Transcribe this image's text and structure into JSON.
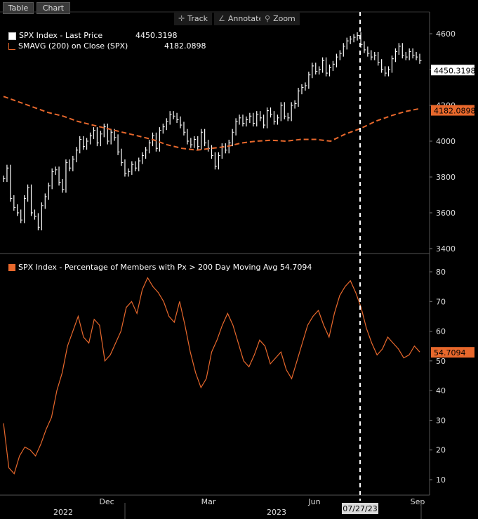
{
  "tabs": [
    {
      "label": "Table"
    },
    {
      "label": "Chart"
    }
  ],
  "toolbar": {
    "track": "Track",
    "annotate": "Annotate",
    "zoom": "Zoom"
  },
  "colors": {
    "price": "#ffffff",
    "sma": "#e8682c",
    "breadth": "#e8682c",
    "cursor": "#ffffff"
  },
  "legend": {
    "price_name": "SPX Index - Last Price",
    "price_value": "4450.3198",
    "sma_name": "SMAVG (200)  on Close (SPX)",
    "sma_value": "4182.0898",
    "breadth_name": "SPX Index - Percentage of Members with Px > 200 Day Moving Avg",
    "breadth_value": "54.7094"
  },
  "cursor_label": "07/27/23",
  "chart_data": [
    {
      "type": "line",
      "series": [
        {
          "name": "SPX Index - Last Price",
          "kind": "ohlc-bar",
          "values": [
            3790,
            3850,
            3680,
            3630,
            3600,
            3560,
            3680,
            3740,
            3600,
            3580,
            3520,
            3640,
            3690,
            3750,
            3830,
            3840,
            3770,
            3730,
            3880,
            3850,
            3900,
            3950,
            4010,
            3970,
            4000,
            4030,
            4060,
            3990,
            4040,
            4080,
            4000,
            4050,
            4020,
            3940,
            3880,
            3820,
            3830,
            3870,
            3850,
            3890,
            3920,
            3950,
            3990,
            4030,
            3960,
            4060,
            4080,
            4110,
            4150,
            4140,
            4120,
            4090,
            4050,
            4000,
            3980,
            4010,
            3970,
            4050,
            3990,
            3960,
            3920,
            3860,
            3920,
            3970,
            3950,
            3990,
            4050,
            4110,
            4130,
            4100,
            4120,
            4140,
            4100,
            4150,
            4130,
            4090,
            4170,
            4150,
            4110,
            4130,
            4200,
            4140,
            4130,
            4200,
            4210,
            4280,
            4300,
            4310,
            4370,
            4420,
            4390,
            4400,
            4450,
            4380,
            4410,
            4430,
            4470,
            4490,
            4530,
            4560,
            4570,
            4580,
            4590,
            4540,
            4510,
            4490,
            4470,
            4480,
            4440,
            4400,
            4380,
            4400,
            4460,
            4500,
            4530,
            4480,
            4470,
            4500,
            4480,
            4470,
            4450
          ]
        },
        {
          "name": "SMAVG (200)  on Close (SPX)",
          "kind": "dashed",
          "values": [
            4250,
            4220,
            4190,
            4160,
            4140,
            4110,
            4090,
            4070,
            4050,
            4030,
            4010,
            3980,
            3960,
            3950,
            3960,
            3970,
            3990,
            4000,
            4005,
            4000,
            4010,
            4010,
            4000,
            4040,
            4070,
            4110,
            4140,
            4165,
            4182
          ]
        }
      ],
      "yticks": [
        3400,
        3600,
        3800,
        4000,
        4200,
        4400,
        4600
      ],
      "ylim": [
        3390,
        4650
      ],
      "value_labels": [
        "4450.3198",
        "4182.0898"
      ]
    },
    {
      "type": "line",
      "series": [
        {
          "name": "SPX Index - Percentage of Members with Px > 200 Day Moving Avg",
          "values": [
            29,
            14,
            12,
            18,
            21,
            20,
            18,
            22,
            27,
            31,
            40,
            46,
            55,
            60,
            65,
            58,
            56,
            64,
            62,
            50,
            52,
            56,
            60,
            68,
            70,
            66,
            74,
            78,
            75,
            73,
            70,
            65,
            63,
            70,
            62,
            53,
            46,
            41,
            44,
            53,
            57,
            62,
            66,
            62,
            56,
            50,
            48,
            52,
            57,
            55,
            49,
            51,
            53,
            47,
            44,
            50,
            56,
            62,
            65,
            67,
            62,
            58,
            66,
            72,
            75,
            77,
            73,
            68,
            61,
            56,
            52,
            54,
            58,
            56,
            54,
            51,
            52,
            55,
            53
          ]
        }
      ],
      "yticks": [
        10,
        20,
        30,
        40,
        50,
        60,
        70,
        80
      ],
      "ylim": [
        5,
        85
      ],
      "value_labels": [
        "54.7094"
      ]
    }
  ],
  "xaxis": {
    "months": [
      "Dec",
      "Mar",
      "Jun",
      "Sep"
    ],
    "years": [
      "2022",
      "2023"
    ]
  }
}
